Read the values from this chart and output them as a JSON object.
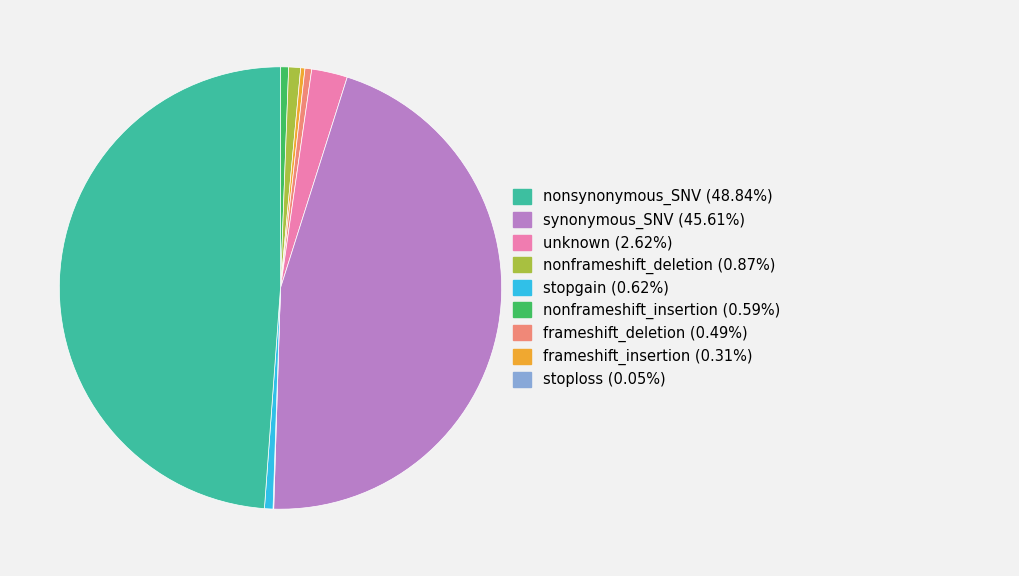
{
  "labels": [
    "nonsynonymous_SNV (48.84%)",
    "synonymous_SNV (45.61%)",
    "unknown (2.62%)",
    "nonframeshift_deletion (0.87%)",
    "stopgain (0.62%)",
    "nonframeshift_insertion (0.59%)",
    "frameshift_deletion (0.49%)",
    "frameshift_insertion (0.31%)",
    "stoploss (0.05%)"
  ],
  "values": [
    48.84,
    45.61,
    2.62,
    0.87,
    0.62,
    0.59,
    0.49,
    0.31,
    0.05
  ],
  "colors": [
    "#3DBFA0",
    "#B87EC8",
    "#F07CB0",
    "#A8C040",
    "#30C0E8",
    "#40C060",
    "#F08878",
    "#F0A830",
    "#88A8D8"
  ],
  "background_color": "#f2f2f2",
  "startangle": 90,
  "legend_fontsize": 10.5
}
